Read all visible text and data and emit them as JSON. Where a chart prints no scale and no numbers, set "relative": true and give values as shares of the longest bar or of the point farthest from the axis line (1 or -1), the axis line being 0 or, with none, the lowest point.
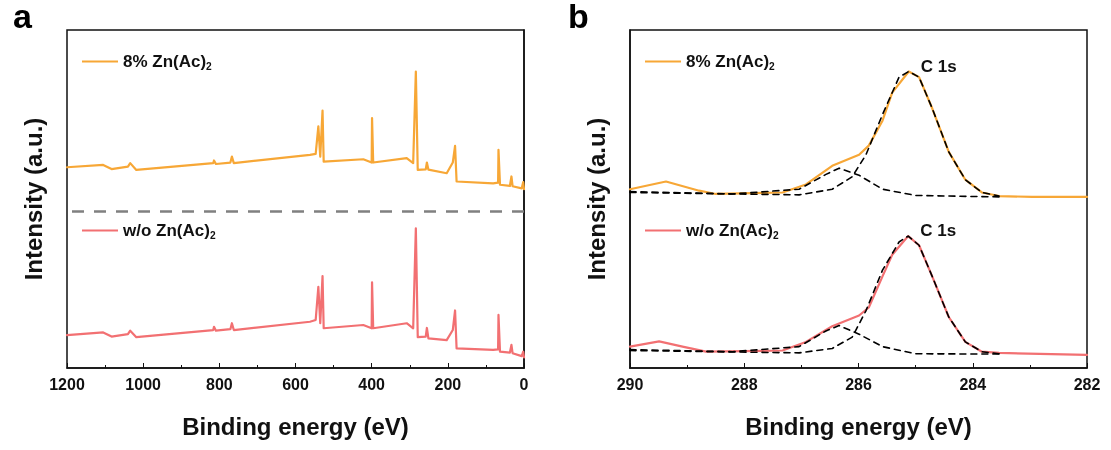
{
  "chart_data": [
    {
      "type": "line",
      "title": "a",
      "xlabel": "Binding energy (eV)",
      "ylabel": "Intensity (a.u.)",
      "relative": true,
      "marker": "none",
      "legend": "left",
      "grid": false,
      "xlim": [
        1200,
        0
      ],
      "xticks": [
        1200,
        1000,
        800,
        600,
        400,
        200,
        0
      ],
      "ref_lines": [
        {
          "axis": "y",
          "value": 0.528,
          "color": "#808080",
          "line_style": "dashed"
        }
      ],
      "series": [
        {
          "name": "8% Zn(Ac)$_{2}$",
          "color": "#f7a736",
          "x": [
            1200,
            1105,
            1083,
            1040,
            1034,
            1018,
            816,
            814,
            809,
            771,
            767,
            762,
            562,
            547,
            540,
            535,
            529,
            526,
            422,
            400,
            399,
            396,
            308,
            291,
            284,
            279,
            258,
            255,
            251,
            203,
            187,
            181,
            177,
            81,
            68,
            67,
            63,
            37,
            33,
            30,
            6,
            2,
            0
          ],
          "values": [
            0.677,
            0.685,
            0.671,
            0.679,
            0.691,
            0.668,
            0.691,
            0.7,
            0.688,
            0.693,
            0.713,
            0.691,
            0.719,
            0.722,
            0.815,
            0.713,
            0.868,
            0.696,
            0.704,
            0.693,
            0.843,
            0.693,
            0.708,
            0.691,
            1.0,
            0.668,
            0.67,
            0.693,
            0.669,
            0.657,
            0.693,
            0.749,
            0.629,
            0.623,
            0.625,
            0.736,
            0.618,
            0.614,
            0.646,
            0.613,
            0.606,
            0.627,
            0.603
          ]
        },
        {
          "name": "w/o Zn(Ac)$_{2}$",
          "color": "#f27072",
          "x": [
            1200,
            1105,
            1083,
            1040,
            1034,
            1018,
            816,
            814,
            809,
            771,
            767,
            762,
            562,
            547,
            540,
            535,
            529,
            526,
            422,
            400,
            399,
            396,
            308,
            291,
            284,
            279,
            258,
            255,
            251,
            203,
            187,
            181,
            177,
            81,
            68,
            67,
            63,
            37,
            33,
            30,
            6,
            2,
            0
          ],
          "values": [
            0.111,
            0.12,
            0.106,
            0.114,
            0.126,
            0.104,
            0.128,
            0.139,
            0.126,
            0.131,
            0.151,
            0.128,
            0.156,
            0.162,
            0.274,
            0.151,
            0.31,
            0.134,
            0.145,
            0.134,
            0.289,
            0.134,
            0.151,
            0.134,
            0.471,
            0.104,
            0.106,
            0.135,
            0.1,
            0.094,
            0.128,
            0.194,
            0.066,
            0.061,
            0.063,
            0.179,
            0.055,
            0.052,
            0.078,
            0.05,
            0.04,
            0.055,
            0.036
          ]
        }
      ]
    },
    {
      "type": "line",
      "title": "b",
      "xlabel": "Binding energy (eV)",
      "ylabel": "Intensity (a.u.)",
      "relative": true,
      "marker": "none",
      "legend": "left",
      "grid": false,
      "xlim": [
        290,
        282
      ],
      "xticks": [
        290,
        288,
        286,
        284,
        282
      ],
      "annotations": [
        {
          "text": "C 1s",
          "x": 285.12,
          "y": 1.0
        },
        {
          "text": "C 1s",
          "x": 285.13,
          "y": 0.445
        }
      ],
      "series": [
        {
          "name": "8% Zn(Ac)$_{2}$",
          "color": "#f7a736",
          "x": [
            290,
            289.37,
            288.79,
            288.5,
            287.33,
            286.92,
            286.46,
            285.99,
            285.82,
            285.58,
            285.41,
            285.12,
            284.94,
            284.71,
            284.42,
            284.13,
            283.84,
            283.54,
            282.96,
            282
          ],
          "values": [
            0.603,
            0.629,
            0.598,
            0.587,
            0.592,
            0.619,
            0.682,
            0.719,
            0.75,
            0.834,
            0.929,
            1.0,
            0.981,
            0.876,
            0.729,
            0.635,
            0.592,
            0.58,
            0.577,
            0.577
          ]
        },
        {
          "color": "#000000",
          "line_style": "dashed",
          "x": [
            290,
            288.21,
            287.04,
            286.57,
            286.34,
            285.99,
            285.58,
            285,
            283.54
          ],
          "values": [
            0.595,
            0.587,
            0.603,
            0.653,
            0.674,
            0.65,
            0.603,
            0.582,
            0.577
          ]
        },
        {
          "color": "#000000",
          "line_style": "dashed",
          "x": [
            290,
            287.04,
            286.46,
            286.11,
            285.87,
            285.58,
            285.29,
            285.12,
            284.94,
            284.71,
            284.42,
            284.13,
            283.84,
            283.54
          ],
          "values": [
            0.592,
            0.584,
            0.603,
            0.645,
            0.719,
            0.855,
            0.981,
            1.0,
            0.981,
            0.876,
            0.729,
            0.635,
            0.592,
            0.58
          ]
        },
        {
          "name": "w/o Zn(Ac)$_{2}$",
          "color": "#f27072",
          "x": [
            290,
            289.49,
            289.08,
            288.67,
            287.33,
            286.92,
            286.46,
            285.99,
            285.82,
            285.58,
            285.41,
            285.13,
            284.94,
            284.71,
            284.42,
            284.13,
            283.84,
            283.54,
            282
          ],
          "values": [
            0.072,
            0.09,
            0.072,
            0.055,
            0.059,
            0.088,
            0.141,
            0.177,
            0.204,
            0.309,
            0.382,
            0.445,
            0.414,
            0.309,
            0.172,
            0.088,
            0.055,
            0.051,
            0.044
          ]
        },
        {
          "color": "#000000",
          "line_style": "dashed",
          "x": [
            290,
            288.21,
            287.04,
            286.57,
            286.34,
            285.99,
            285.58,
            285,
            283.54
          ],
          "values": [
            0.062,
            0.055,
            0.072,
            0.125,
            0.143,
            0.114,
            0.072,
            0.048,
            0.047
          ]
        },
        {
          "color": "#000000",
          "line_style": "dashed",
          "x": [
            290,
            287.04,
            286.46,
            286.11,
            285.87,
            285.58,
            285.29,
            285.13,
            284.94,
            284.71,
            284.42,
            284.13,
            283.84,
            283.54
          ],
          "values": [
            0.059,
            0.051,
            0.066,
            0.104,
            0.193,
            0.33,
            0.425,
            0.445,
            0.414,
            0.309,
            0.172,
            0.088,
            0.055,
            0.048
          ]
        }
      ]
    }
  ]
}
